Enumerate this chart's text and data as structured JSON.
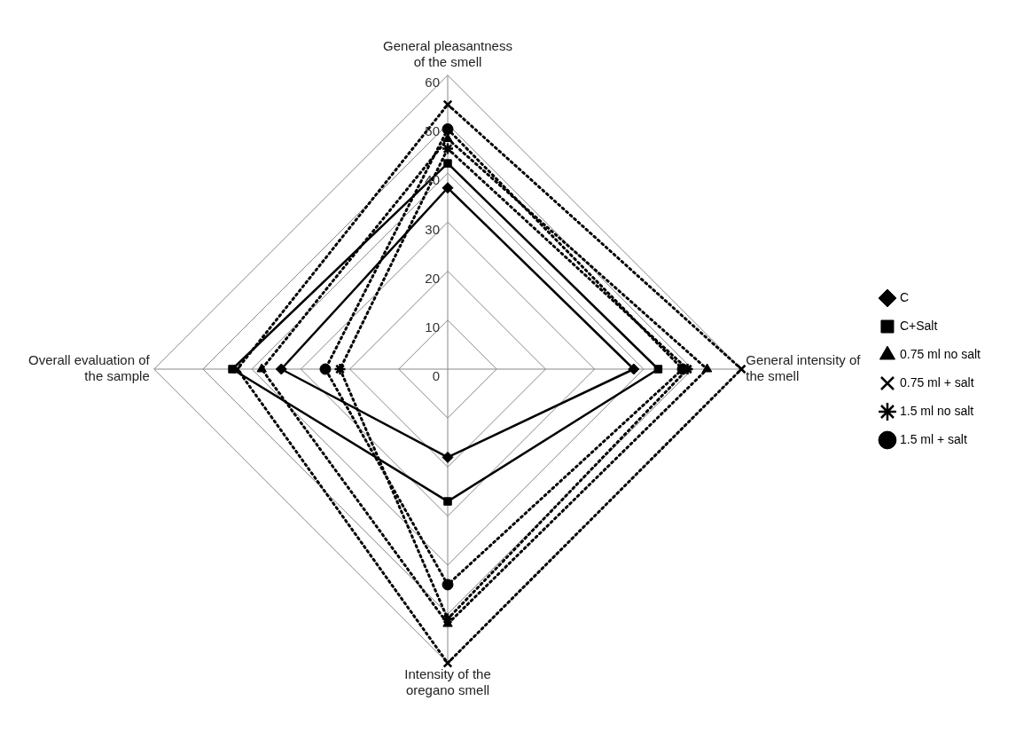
{
  "chart_data": {
    "type": "radar",
    "categories": [
      "General pleasantness of the smell",
      "General intensity of the smell",
      "Intensity of the oregano smell",
      "Overall evaluation of the sample"
    ],
    "ylim": [
      0,
      60
    ],
    "yticks": [
      0,
      10,
      20,
      30,
      40,
      50,
      60
    ],
    "grid": true,
    "legend": "right",
    "series": [
      {
        "name": "C",
        "color": "#000000",
        "marker": "diamond",
        "line_style": "solid",
        "values": [
          37,
          38,
          18,
          34
        ]
      },
      {
        "name": "C+Salt",
        "color": "#000000",
        "marker": "square",
        "line_style": "solid",
        "values": [
          42,
          43,
          27,
          44
        ]
      },
      {
        "name": "0.75 ml no salt",
        "color": "#000000",
        "marker": "triangle",
        "line_style": "dotted",
        "values": [
          47,
          53,
          52,
          38
        ]
      },
      {
        "name": "0.75 ml + salt",
        "color": "#000000",
        "marker": "cross",
        "line_style": "dotted",
        "values": [
          54,
          60,
          60,
          43
        ]
      },
      {
        "name": "1.5 ml no salt",
        "color": "#000000",
        "marker": "star",
        "line_style": "dotted",
        "values": [
          45,
          49,
          51,
          22
        ]
      },
      {
        "name": "1.5 ml + salt",
        "color": "#000000",
        "marker": "circle",
        "line_style": "dotted",
        "values": [
          49,
          48,
          44,
          25
        ]
      }
    ]
  }
}
